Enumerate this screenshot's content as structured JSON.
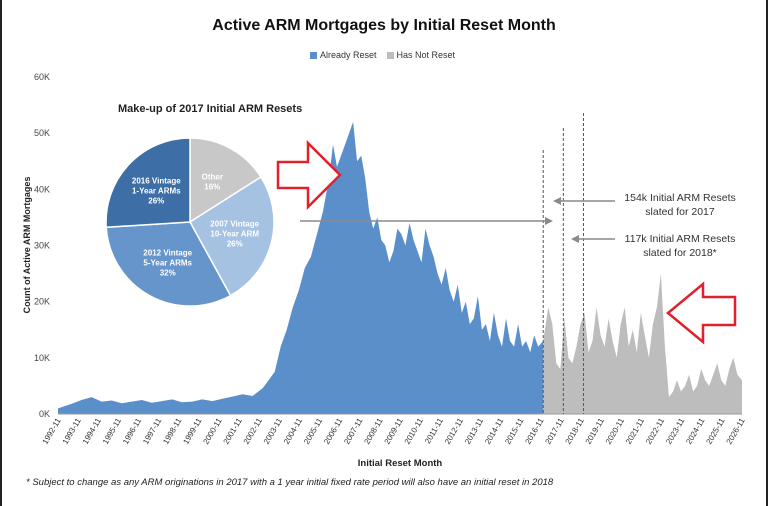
{
  "chart_data": [
    {
      "type": "area",
      "title": "Active ARM Mortgages by Initial Reset Month",
      "xlabel": "Initial Reset Month",
      "ylabel": "Count of Active ARM Mortgages",
      "ylim": [
        0,
        60000
      ],
      "y_ticks": [
        "0K",
        "10K",
        "20K",
        "30K",
        "40K",
        "50K",
        "60K"
      ],
      "x_ticks": [
        "1992-11",
        "1993-11",
        "1994-11",
        "1995-11",
        "1996-11",
        "1997-11",
        "1998-11",
        "1999-11",
        "2000-11",
        "2001-11",
        "2002-11",
        "2003-11",
        "2004-11",
        "2005-11",
        "2006-11",
        "2007-11",
        "2008-11",
        "2009-11",
        "2010-11",
        "2011-11",
        "2012-11",
        "2013-11",
        "2014-11",
        "2015-11",
        "2016-11",
        "2017-11",
        "2018-11",
        "2019-11",
        "2020-11",
        "2021-11",
        "2022-11",
        "2023-11",
        "2024-11",
        "2025-11",
        "2026-11"
      ],
      "legend_position": "top-center",
      "series": [
        {
          "name": "Already Reset",
          "color": "#5b8fc9",
          "x": [
            1992.83,
            1993.5,
            1994.0,
            1994.5,
            1995.0,
            1995.5,
            1996.0,
            1996.5,
            1997.0,
            1997.5,
            1998.0,
            1998.5,
            1999.0,
            1999.5,
            2000.0,
            2000.5,
            2001.0,
            2001.5,
            2002.0,
            2002.5,
            2003.0,
            2003.3,
            2003.6,
            2003.9,
            2004.2,
            2004.5,
            2004.8,
            2005.1,
            2005.4,
            2005.7,
            2006.0,
            2006.3,
            2006.5,
            2006.7,
            2007.0,
            2007.3,
            2007.5,
            2007.7,
            2007.9,
            2008.1,
            2008.3,
            2008.5,
            2008.7,
            2008.9,
            2009.1,
            2009.3,
            2009.5,
            2009.7,
            2009.9,
            2010.1,
            2010.3,
            2010.5,
            2010.7,
            2010.9,
            2011.1,
            2011.3,
            2011.5,
            2011.7,
            2011.9,
            2012.1,
            2012.3,
            2012.5,
            2012.7,
            2012.9,
            2013.1,
            2013.3,
            2013.5,
            2013.7,
            2013.9,
            2014.1,
            2014.3,
            2014.5,
            2014.7,
            2014.9,
            2015.1,
            2015.3,
            2015.5,
            2015.7,
            2015.9,
            2016.1,
            2016.3,
            2016.5,
            2016.7,
            2016.95
          ],
          "values": [
            1000,
            1800,
            2500,
            3000,
            2200,
            2400,
            1900,
            2200,
            2500,
            2000,
            2300,
            2600,
            2100,
            2200,
            2600,
            2300,
            2700,
            3100,
            3500,
            3200,
            4600,
            6000,
            7500,
            12000,
            15000,
            19000,
            22000,
            26000,
            28000,
            32000,
            36000,
            42000,
            48000,
            44000,
            47000,
            50000,
            52000,
            45000,
            46000,
            42000,
            36000,
            33000,
            35000,
            31000,
            30000,
            27000,
            29000,
            33000,
            32000,
            30000,
            34000,
            31000,
            29000,
            27000,
            33000,
            30000,
            28000,
            25000,
            23000,
            26000,
            22000,
            20000,
            23000,
            18000,
            20000,
            16000,
            17000,
            21000,
            15000,
            16000,
            13000,
            18000,
            14000,
            12000,
            17000,
            13000,
            12000,
            16000,
            12000,
            13000,
            11000,
            14000,
            12000,
            13000
          ]
        },
        {
          "name": "Has Not Reset",
          "color": "#bdbdbd",
          "x": [
            2016.95,
            2017.2,
            2017.4,
            2017.6,
            2017.8,
            2018.0,
            2018.2,
            2018.4,
            2018.6,
            2018.8,
            2019.0,
            2019.2,
            2019.4,
            2019.6,
            2019.8,
            2020.0,
            2020.2,
            2020.4,
            2020.6,
            2020.8,
            2021.0,
            2021.2,
            2021.4,
            2021.6,
            2021.8,
            2022.0,
            2022.2,
            2022.4,
            2022.6,
            2022.8,
            2023.0,
            2023.2,
            2023.4,
            2023.6,
            2023.8,
            2024.0,
            2024.2,
            2024.4,
            2024.6,
            2024.8,
            2025.0,
            2025.2,
            2025.4,
            2025.6,
            2025.8,
            2026.0,
            2026.2,
            2026.4,
            2026.6,
            2026.83
          ],
          "values": [
            13000,
            19000,
            16000,
            9000,
            8000,
            17000,
            10000,
            9000,
            12000,
            16000,
            18000,
            11000,
            13000,
            19000,
            14000,
            12000,
            17000,
            13000,
            10000,
            16000,
            19000,
            12000,
            15000,
            11000,
            18000,
            14000,
            10000,
            16000,
            19000,
            25000,
            12000,
            3000,
            4000,
            6000,
            4000,
            5000,
            7000,
            4000,
            5000,
            8000,
            6000,
            5000,
            7000,
            9000,
            6000,
            5000,
            8000,
            10000,
            7000,
            6000
          ]
        }
      ],
      "annotations": [
        "154k Initial ARM Resets slated for 2017",
        "117k Initial ARM Resets slated for 2018*"
      ]
    },
    {
      "type": "pie",
      "title": "Make-up of 2017 Initial ARM Resets",
      "slices": [
        {
          "label": [
            "Other",
            "16%"
          ],
          "value": 16,
          "color": "#c8c8c8"
        },
        {
          "label": [
            "2007 Vintage",
            "10-Year ARM",
            "26%"
          ],
          "value": 26,
          "color": "#a6c2e3"
        },
        {
          "label": [
            "2012 Vintage",
            "5-Year ARMs",
            "32%"
          ],
          "value": 32,
          "color": "#6695cc"
        },
        {
          "label": [
            "2016 Vintage",
            "1-Year ARMs",
            "26%"
          ],
          "value": 26,
          "color": "#3e6ea6"
        }
      ]
    }
  ],
  "footnote": "* Subject to change as any ARM originations in 2017 with a 1 year initial fixed rate period will also have an initial reset in 2018",
  "colors": {
    "arrow_red": "#e0202a",
    "annotation_grey": "#8a8a8a",
    "axis_text": "#444444"
  }
}
